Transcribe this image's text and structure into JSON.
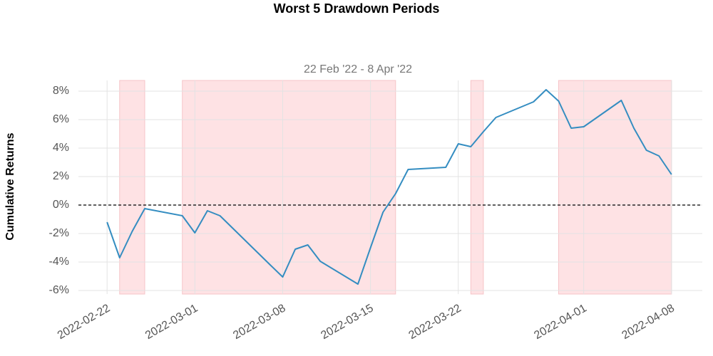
{
  "chart_data": {
    "type": "line",
    "title": "Worst 5 Drawdown Periods",
    "subtitle": "22 Feb '22 -  8 Apr '22",
    "y_label": "Cumulative Returns",
    "x": [
      "2022-02-22",
      "2022-02-23",
      "2022-02-24",
      "2022-02-25",
      "2022-02-28",
      "2022-03-01",
      "2022-03-02",
      "2022-03-03",
      "2022-03-07",
      "2022-03-08",
      "2022-03-09",
      "2022-03-10",
      "2022-03-11",
      "2022-03-14",
      "2022-03-15",
      "2022-03-16",
      "2022-03-17",
      "2022-03-18",
      "2022-03-21",
      "2022-03-22",
      "2022-03-23",
      "2022-03-24",
      "2022-03-25",
      "2022-03-28",
      "2022-03-29",
      "2022-03-30",
      "2022-03-31",
      "2022-04-01",
      "2022-04-04",
      "2022-04-05",
      "2022-04-06",
      "2022-04-07",
      "2022-04-08"
    ],
    "values": [
      -1.2,
      -3.7,
      -1.85,
      -0.25,
      -0.75,
      -1.95,
      -0.4,
      -0.75,
      -4.2,
      -5.05,
      -3.1,
      -2.8,
      -3.95,
      -5.55,
      -3.0,
      -0.5,
      0.8,
      2.5,
      2.65,
      4.3,
      4.1,
      5.15,
      6.15,
      7.25,
      8.1,
      7.3,
      5.4,
      5.5,
      7.35,
      5.4,
      3.85,
      3.45,
      2.15
    ],
    "color": "#348dc1",
    "shaded_periods": [
      {
        "start": "2022-02-23",
        "end": "2022-02-25"
      },
      {
        "start": "2022-02-28",
        "end": "2022-03-17"
      },
      {
        "start": "2022-03-23",
        "end": "2022-03-24"
      },
      {
        "start": "2022-03-30",
        "end": "2022-04-08"
      }
    ],
    "shade_color": "#fee2e4",
    "hline": 0,
    "xlim": [
      "2022-02-20",
      "2022-04-10"
    ],
    "xticks": [
      "2022-02-22",
      "2022-03-01",
      "2022-03-08",
      "2022-03-15",
      "2022-03-22",
      "2022-04-01",
      "2022-04-08"
    ],
    "ylim": [
      -6.25,
      8.75
    ],
    "yticks": [
      {
        "value": -6,
        "label": "-6%"
      },
      {
        "value": -4,
        "label": "-4%"
      },
      {
        "value": -2,
        "label": "-2%"
      },
      {
        "value": 0,
        "label": "0%"
      },
      {
        "value": 2,
        "label": "2%"
      },
      {
        "value": 4,
        "label": "4%"
      },
      {
        "value": 6,
        "label": "6%"
      },
      {
        "value": 8,
        "label": "8%"
      }
    ],
    "grid": true
  }
}
